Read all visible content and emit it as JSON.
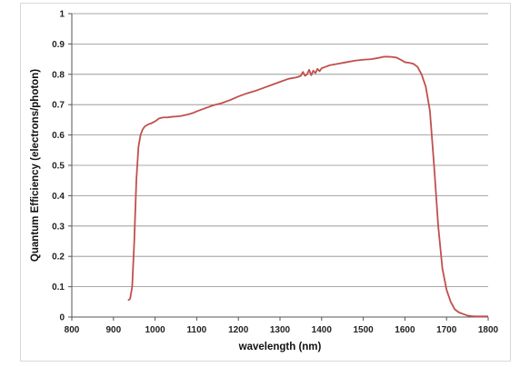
{
  "chart_data": {
    "type": "line",
    "title": "",
    "xlabel": "wavelength (nm)",
    "ylabel": "Quantum Efficiency (electrons/photon)",
    "xlim": [
      800,
      1800
    ],
    "ylim": [
      0,
      1
    ],
    "x_ticks": [
      "800",
      "900",
      "1000",
      "1100",
      "1200",
      "1300",
      "1400",
      "1500",
      "1600",
      "1700",
      "1800"
    ],
    "y_ticks": [
      "0",
      "0.1",
      "0.2",
      "0.3",
      "0.4",
      "0.5",
      "0.6",
      "0.7",
      "0.8",
      "0.9",
      "1"
    ],
    "grid": true,
    "line_color": "#c0504d",
    "series": [
      {
        "x": [
          935,
          940,
          945,
          950,
          955,
          960,
          965,
          970,
          975,
          980,
          985,
          990,
          1000,
          1010,
          1020,
          1030,
          1040,
          1050,
          1060,
          1070,
          1080,
          1090,
          1100,
          1120,
          1140,
          1160,
          1180,
          1200,
          1220,
          1240,
          1260,
          1280,
          1300,
          1320,
          1340,
          1350,
          1355,
          1360,
          1365,
          1370,
          1375,
          1380,
          1385,
          1390,
          1395,
          1400,
          1410,
          1420,
          1440,
          1460,
          1480,
          1500,
          1520,
          1540,
          1550,
          1560,
          1570,
          1580,
          1590,
          1600,
          1610,
          1620,
          1630,
          1640,
          1650,
          1660,
          1670,
          1680,
          1690,
          1700,
          1710,
          1720,
          1730,
          1740,
          1750,
          1760,
          1770,
          1780,
          1790,
          1800
        ],
        "y": [
          0.055,
          0.06,
          0.1,
          0.25,
          0.45,
          0.56,
          0.6,
          0.618,
          0.628,
          0.632,
          0.636,
          0.638,
          0.645,
          0.655,
          0.658,
          0.658,
          0.66,
          0.661,
          0.662,
          0.665,
          0.668,
          0.672,
          0.678,
          0.688,
          0.698,
          0.705,
          0.715,
          0.727,
          0.737,
          0.745,
          0.755,
          0.765,
          0.775,
          0.785,
          0.79,
          0.795,
          0.808,
          0.795,
          0.8,
          0.815,
          0.797,
          0.812,
          0.804,
          0.818,
          0.81,
          0.82,
          0.825,
          0.83,
          0.835,
          0.84,
          0.845,
          0.848,
          0.85,
          0.855,
          0.858,
          0.858,
          0.857,
          0.855,
          0.848,
          0.84,
          0.838,
          0.835,
          0.825,
          0.8,
          0.76,
          0.68,
          0.5,
          0.3,
          0.16,
          0.09,
          0.05,
          0.025,
          0.015,
          0.01,
          0.005,
          0.003,
          0.002,
          0.002,
          0.002,
          0.002
        ]
      }
    ]
  }
}
